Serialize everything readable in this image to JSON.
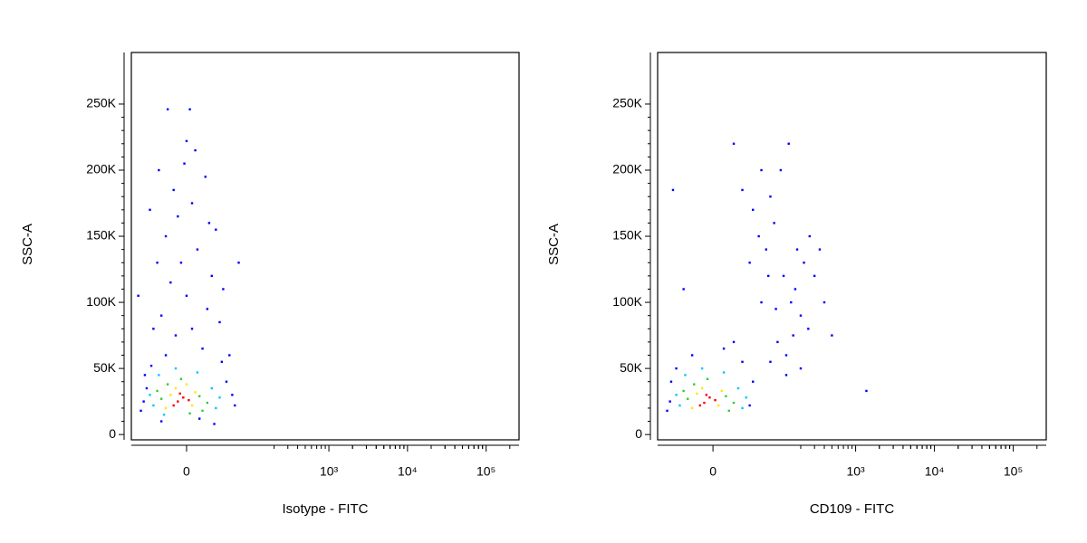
{
  "chart_data": [
    {
      "type": "scatter",
      "x_label": "Isotype - FITC",
      "y_label": "SSC-A",
      "xscale": "biexponential",
      "xlim": [
        -75,
        262144
      ],
      "ylim": [
        -4000,
        289000
      ],
      "xticks": [
        0,
        {
          "value": 1000,
          "label": "10³"
        },
        {
          "value": 10000,
          "label": "10⁴"
        },
        {
          "value": 100000,
          "label": "10⁵"
        }
      ],
      "yticks": [
        0,
        {
          "value": 50000,
          "label": "50K"
        },
        {
          "value": 100000,
          "label": "100K"
        },
        {
          "value": 150000,
          "label": "150K"
        },
        {
          "value": 200000,
          "label": "200K"
        },
        {
          "value": 250000,
          "label": "250K"
        }
      ],
      "series": [
        {
          "color": "#0000ff",
          "x": [
            -50,
            -45,
            55,
            60,
            -55,
            45,
            -38,
            38,
            -20,
            15,
            -10,
            5,
            -25,
            20,
            0,
            -15,
            25,
            -5,
            10,
            -20,
            30,
            -8,
            5,
            -12,
            18,
            -2,
            8,
            -30,
            40,
            -40,
            68,
            -60,
            -18,
            3,
            35,
            -35,
            50,
            -48,
            12,
            -25,
            28,
            0,
            22,
            -28
          ],
          "y": [
            25000,
            35000,
            30000,
            22000,
            18000,
            40000,
            52000,
            55000,
            60000,
            65000,
            75000,
            80000,
            90000,
            95000,
            105000,
            115000,
            120000,
            130000,
            140000,
            150000,
            155000,
            165000,
            175000,
            185000,
            195000,
            205000,
            215000,
            130000,
            110000,
            170000,
            130000,
            105000,
            246000,
            246000,
            85000,
            80000,
            60000,
            45000,
            12000,
            10000,
            8000,
            222000,
            160000,
            200000
          ]
        },
        {
          "color": "#00c8ff",
          "x": [
            -35,
            25,
            -28,
            30,
            -40,
            35,
            -10,
            10,
            -22
          ],
          "y": [
            22000,
            35000,
            45000,
            20000,
            30000,
            28000,
            50000,
            47000,
            15000
          ]
        },
        {
          "color": "#33cc33",
          "x": [
            -25,
            12,
            -18,
            15,
            -30,
            20,
            -5,
            3
          ],
          "y": [
            27000,
            29000,
            38000,
            18000,
            33000,
            24000,
            42000,
            16000
          ]
        },
        {
          "color": "#ffe600",
          "x": [
            -15,
            5,
            -10,
            8,
            -20,
            0
          ],
          "y": [
            30000,
            22000,
            35000,
            32000,
            20000,
            38000
          ]
        },
        {
          "color": "#ff0000",
          "x": [
            -8,
            -3,
            -12,
            2,
            -6
          ],
          "y": [
            25000,
            28000,
            22000,
            26000,
            31000
          ]
        }
      ]
    },
    {
      "type": "scatter",
      "x_label": "CD109 - FITC",
      "y_label": "SSC-A",
      "xscale": "biexponential",
      "xlim": [
        -75,
        262144
      ],
      "ylim": [
        -4000,
        289000
      ],
      "xticks": [
        0,
        {
          "value": 1000,
          "label": "10³"
        },
        {
          "value": 10000,
          "label": "10⁴"
        },
        {
          "value": 100000,
          "label": "10⁵"
        }
      ],
      "yticks": [
        0,
        {
          "value": 50000,
          "label": "50K"
        },
        {
          "value": 100000,
          "label": "100K"
        },
        {
          "value": 150000,
          "label": "150K"
        },
        {
          "value": 200000,
          "label": "200K"
        },
        {
          "value": 250000,
          "label": "250K"
        }
      ],
      "series": [
        {
          "color": "#0000ff",
          "x": [
            -50,
            -55,
            45,
            40,
            -40,
            30,
            -20,
            10,
            20,
            -48,
            55,
            70,
            45,
            90,
            60,
            80,
            40,
            120,
            150,
            170,
            200,
            250,
            100,
            130,
            80,
            300,
            350,
            180,
            220,
            110,
            140,
            75,
            60,
            95,
            160,
            400,
            500,
            30,
            20,
            260,
            1370,
            -30,
            -45,
            130,
            200
          ],
          "y": [
            25000,
            18000,
            40000,
            22000,
            50000,
            55000,
            60000,
            65000,
            70000,
            40000,
            150000,
            140000,
            170000,
            160000,
            200000,
            180000,
            130000,
            120000,
            100000,
            110000,
            90000,
            80000,
            70000,
            60000,
            55000,
            120000,
            140000,
            140000,
            130000,
            200000,
            220000,
            120000,
            100000,
            95000,
            75000,
            100000,
            75000,
            185000,
            220000,
            150000,
            33000,
            110000,
            185000,
            45000,
            50000
          ]
        },
        {
          "color": "#00c8ff",
          "x": [
            -35,
            25,
            -28,
            30,
            -40,
            35,
            -10,
            10
          ],
          "y": [
            22000,
            35000,
            45000,
            20000,
            30000,
            28000,
            50000,
            47000
          ]
        },
        {
          "color": "#33cc33",
          "x": [
            -25,
            12,
            -18,
            15,
            -30,
            20,
            -5
          ],
          "y": [
            27000,
            29000,
            38000,
            18000,
            33000,
            24000,
            42000
          ]
        },
        {
          "color": "#ffe600",
          "x": [
            -15,
            5,
            -10,
            8,
            -20
          ],
          "y": [
            31000,
            22000,
            35000,
            33000,
            20000
          ]
        },
        {
          "color": "#ff0000",
          "x": [
            -8,
            -3,
            -12,
            2,
            -6
          ],
          "y": [
            24000,
            28000,
            22000,
            26000,
            30000
          ]
        }
      ]
    }
  ]
}
